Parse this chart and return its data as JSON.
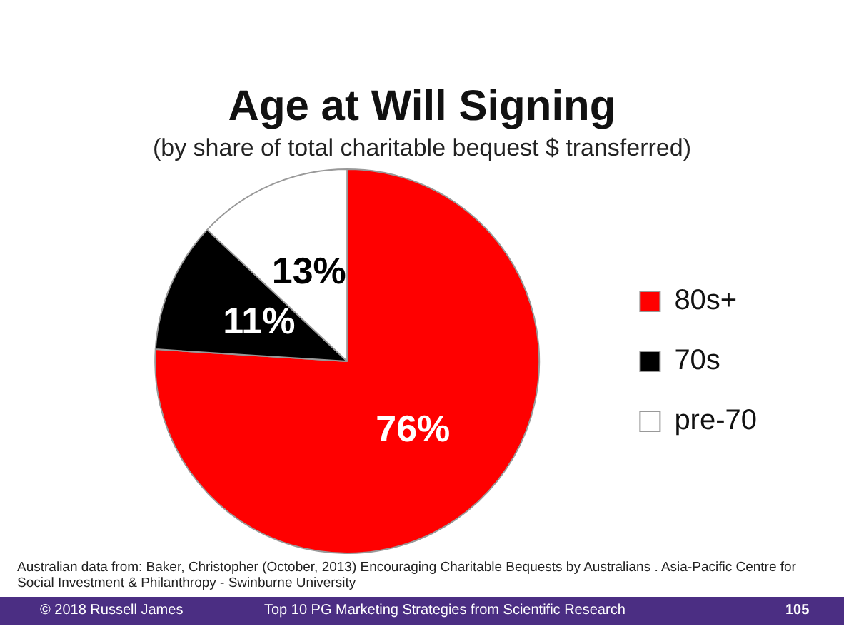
{
  "chart_data": {
    "type": "pie",
    "title": "Age at Will Signing",
    "subtitle": "(by share of total charitable bequest $ transferred)",
    "categories": [
      "80s+",
      "70s",
      "pre-70"
    ],
    "values": [
      76,
      11,
      13
    ],
    "colors": [
      "#ff0000",
      "#000000",
      "#ffffff"
    ],
    "value_labels": [
      "76%",
      "11%",
      "13%"
    ],
    "legend": "right",
    "annotations": [
      "Australian data from: Baker, Christopher (October, 2013) Encouraging Charitable Bequests by Australians . Asia-Pacific Centre for Social Investment & Philanthropy - Swinburne University",
      "© 2018 Russell James",
      "Top 10 PG Marketing Strategies from Scientific Research",
      "105"
    ]
  }
}
